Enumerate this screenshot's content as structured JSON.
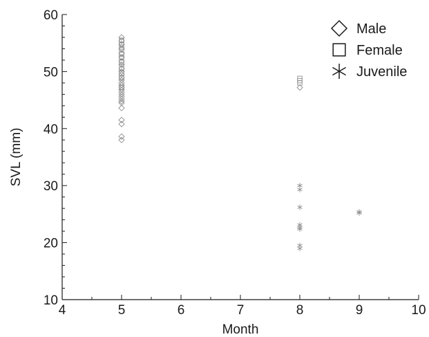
{
  "chart_data": {
    "type": "scatter",
    "xlabel": "Month",
    "ylabel": "SVL (mm)",
    "xlim": [
      4,
      10
    ],
    "ylim": [
      10,
      60
    ],
    "x_ticks": [
      4,
      5,
      6,
      7,
      8,
      9,
      10
    ],
    "y_ticks": [
      10,
      20,
      30,
      40,
      50,
      60
    ],
    "grid": false,
    "legend_position": "top-right",
    "marker_color": "#8c8c8c",
    "legend_color": "#1a1a1a",
    "series": [
      {
        "name": "Male",
        "marker": "diamond",
        "points": [
          {
            "x": 5,
            "y": 56.0
          },
          {
            "x": 5,
            "y": 55.4
          },
          {
            "x": 5,
            "y": 54.8
          },
          {
            "x": 5,
            "y": 54.0
          },
          {
            "x": 5,
            "y": 53.2
          },
          {
            "x": 5,
            "y": 52.5
          },
          {
            "x": 5,
            "y": 51.8
          },
          {
            "x": 5,
            "y": 51.2
          },
          {
            "x": 5,
            "y": 50.5
          },
          {
            "x": 5,
            "y": 50.0
          },
          {
            "x": 5,
            "y": 49.5
          },
          {
            "x": 5,
            "y": 49.0
          },
          {
            "x": 5,
            "y": 48.5
          },
          {
            "x": 5,
            "y": 48.0
          },
          {
            "x": 5,
            "y": 47.6
          },
          {
            "x": 5,
            "y": 47.2
          },
          {
            "x": 5,
            "y": 46.8
          },
          {
            "x": 5,
            "y": 46.4
          },
          {
            "x": 5,
            "y": 46.0
          },
          {
            "x": 5,
            "y": 45.6
          },
          {
            "x": 5,
            "y": 45.2
          },
          {
            "x": 5,
            "y": 44.8
          },
          {
            "x": 5,
            "y": 44.5
          },
          {
            "x": 5,
            "y": 43.6
          },
          {
            "x": 5,
            "y": 41.5
          },
          {
            "x": 5,
            "y": 40.8
          },
          {
            "x": 5,
            "y": 38.6
          },
          {
            "x": 5,
            "y": 38.0
          },
          {
            "x": 8,
            "y": 47.2
          }
        ]
      },
      {
        "name": "Female",
        "marker": "square",
        "points": [
          {
            "x": 5,
            "y": 55.5
          },
          {
            "x": 5,
            "y": 54.8
          },
          {
            "x": 5,
            "y": 54.3
          },
          {
            "x": 5,
            "y": 53.8
          },
          {
            "x": 5,
            "y": 53.0
          },
          {
            "x": 5,
            "y": 52.5
          },
          {
            "x": 5,
            "y": 51.6
          },
          {
            "x": 5,
            "y": 50.6
          },
          {
            "x": 5,
            "y": 49.7
          },
          {
            "x": 5,
            "y": 48.9
          },
          {
            "x": 5,
            "y": 47.2
          },
          {
            "x": 8,
            "y": 48.8
          },
          {
            "x": 8,
            "y": 48.4
          },
          {
            "x": 8,
            "y": 48.0
          }
        ]
      },
      {
        "name": "Juvenile",
        "marker": "asterisk",
        "points": [
          {
            "x": 8,
            "y": 30.0
          },
          {
            "x": 8,
            "y": 29.3
          },
          {
            "x": 8,
            "y": 26.2
          },
          {
            "x": 8,
            "y": 23.1
          },
          {
            "x": 8,
            "y": 22.7
          },
          {
            "x": 8,
            "y": 22.4
          },
          {
            "x": 8,
            "y": 19.5
          },
          {
            "x": 8,
            "y": 19.0
          },
          {
            "x": 9,
            "y": 25.4
          },
          {
            "x": 9,
            "y": 25.2
          }
        ]
      }
    ]
  }
}
